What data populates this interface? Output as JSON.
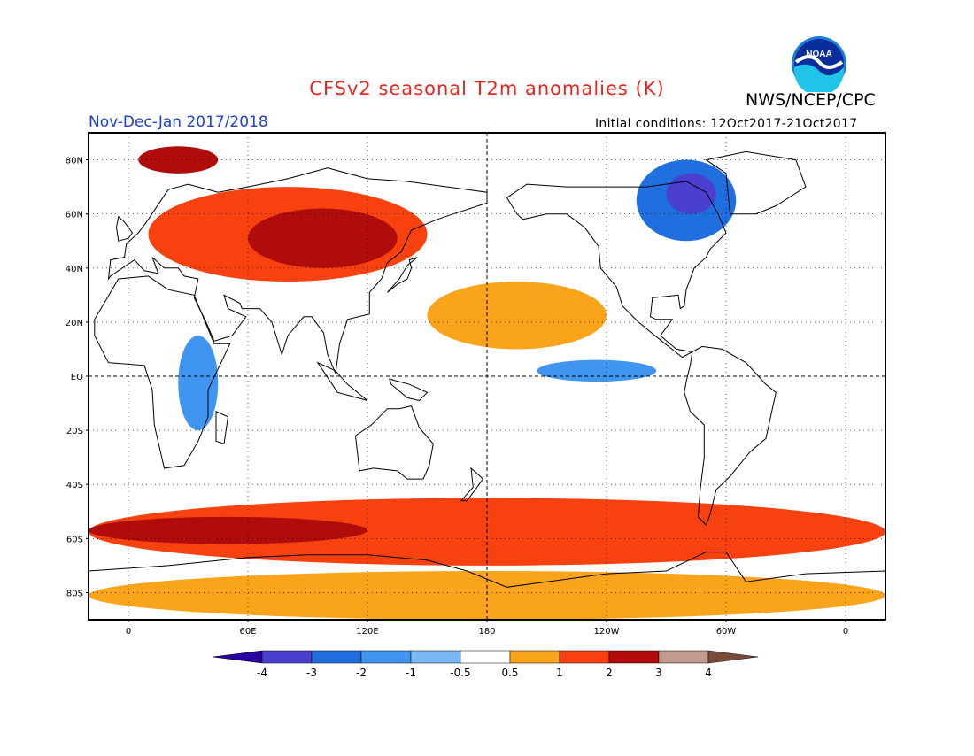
{
  "header": {
    "title": "CFSv2 seasonal T2m anomalies (K)",
    "org": "NWS/NCEP/CPC",
    "season": "Nov-Dec-Jan 2017/2018",
    "initial_conditions": "Initial conditions: 12Oct2017-21Oct2017",
    "logo_text": "NOAA"
  },
  "map": {
    "lat_labels": [
      "80N",
      "60N",
      "40N",
      "20N",
      "EQ",
      "20S",
      "40S",
      "60S",
      "80S"
    ],
    "lat_values": [
      80,
      60,
      40,
      20,
      0,
      -20,
      -40,
      -60,
      -80
    ],
    "lon_labels": [
      "0",
      "60E",
      "120E",
      "180",
      "120W",
      "60W",
      "0"
    ],
    "lon_values": [
      0,
      60,
      120,
      180,
      240,
      300,
      360
    ],
    "lon_range": [
      -20,
      380
    ],
    "lat_range": [
      -90,
      90
    ]
  },
  "colorbar": {
    "labels": [
      "-4",
      "-3",
      "-2",
      "-1",
      "-0.5",
      "0.5",
      "1",
      "2",
      "3",
      "4"
    ],
    "colors": [
      "#2a00a0",
      "#4a3fcf",
      "#1f6fe0",
      "#3f95ef",
      "#7ab8f5",
      "#ffffff",
      "#f9a41b",
      "#f7420f",
      "#b00c0c",
      "#c49a8e",
      "#7a4d3a"
    ]
  },
  "anomaly_regions": [
    {
      "name": "Eurasia warm",
      "lon": [
        10,
        150
      ],
      "lat": [
        35,
        70
      ],
      "level": "2"
    },
    {
      "name": "Central Asia strong warm",
      "lon": [
        60,
        135
      ],
      "lat": [
        40,
        62
      ],
      "level": "3"
    },
    {
      "name": "Barents warm",
      "lon": [
        5,
        45
      ],
      "lat": [
        75,
        85
      ],
      "level": "3"
    },
    {
      "name": "Canada cold",
      "lon": [
        255,
        305
      ],
      "lat": [
        50,
        80
      ],
      "level": "-2"
    },
    {
      "name": "Canada strong cold",
      "lon": [
        270,
        295
      ],
      "lat": [
        60,
        75
      ],
      "level": "-3"
    },
    {
      "name": "Equatorial Pacific cold",
      "lon": [
        205,
        265
      ],
      "lat": [
        -2,
        6
      ],
      "level": "-1"
    },
    {
      "name": "North Pacific warm band",
      "lon": [
        150,
        240
      ],
      "lat": [
        10,
        35
      ],
      "level": "1"
    },
    {
      "name": "Southern Ocean warm belt",
      "lon": [
        -20,
        380
      ],
      "lat": [
        -70,
        -45
      ],
      "level": "2"
    },
    {
      "name": "Southern Ocean strong warm",
      "lon": [
        -20,
        120
      ],
      "lat": [
        -62,
        -52
      ],
      "level": "3"
    },
    {
      "name": "Antarctic coast warm",
      "lon": [
        -20,
        380
      ],
      "lat": [
        -90,
        -72
      ],
      "level": "1"
    },
    {
      "name": "Central Africa cold",
      "lon": [
        25,
        45
      ],
      "lat": [
        -20,
        15
      ],
      "level": "-1"
    }
  ]
}
